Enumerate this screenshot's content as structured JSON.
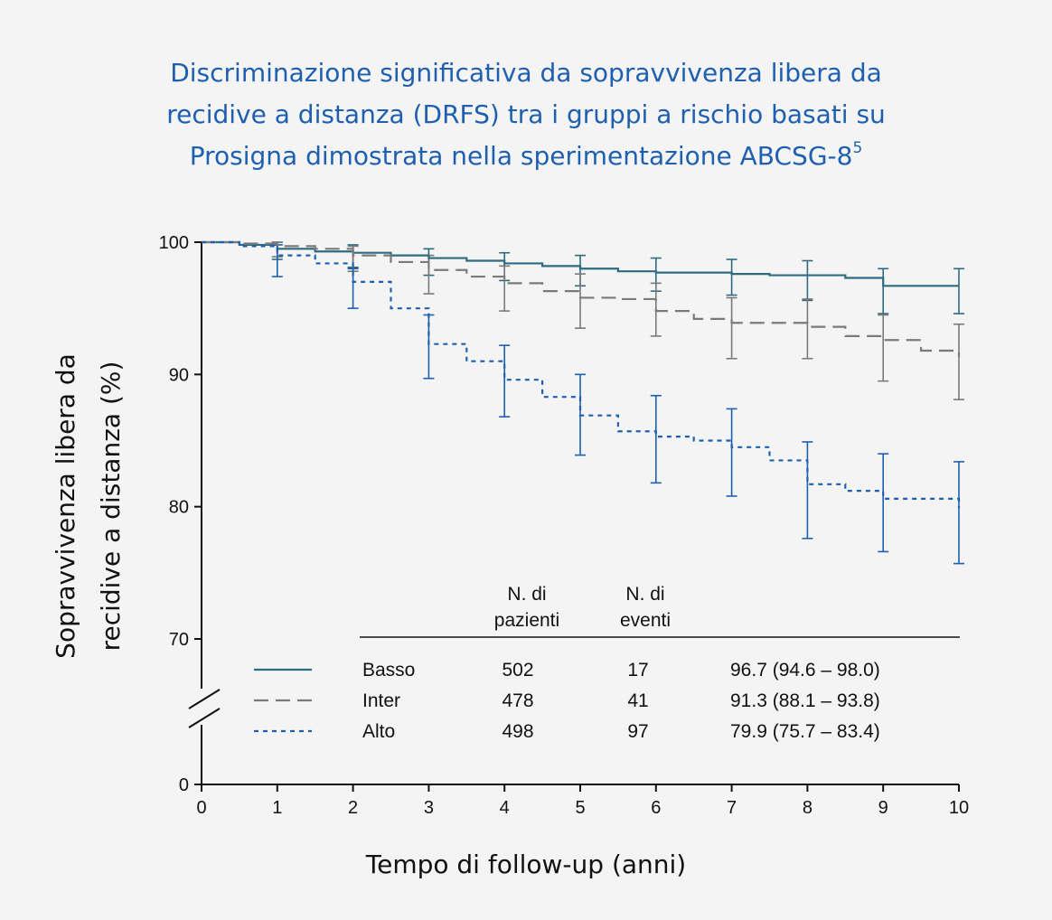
{
  "title_lines": [
    "Discriminazione significativa da sopravvivenza libera da",
    "recidive a distanza (DRFS) tra i gruppi a rischio basati su",
    "Prosigna dimostrata nella sperimentazione ABCSG-8"
  ],
  "title_sup": "5",
  "chart_data": {
    "type": "line",
    "subtype": "kaplan-meier step curve",
    "ylabel_lines": [
      "Sopravvivenza libera da",
      "recidive a distanza (%)"
    ],
    "xlabel": "Tempo di follow-up (anni)",
    "xlim": [
      0,
      10
    ],
    "ylim": [
      0,
      100
    ],
    "y_axis_break": "between 0 and 70",
    "x_ticks": [
      0,
      1,
      2,
      3,
      4,
      5,
      6,
      7,
      8,
      9,
      10
    ],
    "y_ticks": [
      0,
      70,
      80,
      90,
      100
    ],
    "grid": false,
    "colors": {
      "Basso": "#2e6b80",
      "Inter": "#7a7a7a",
      "Alto": "#1d5fb0"
    },
    "series": [
      {
        "name": "Basso",
        "style": "solid",
        "points": [
          [
            0,
            100
          ],
          [
            0.5,
            99.8
          ],
          [
            1,
            99.5
          ],
          [
            1.5,
            99.3
          ],
          [
            2,
            99.2
          ],
          [
            2.5,
            99.0
          ],
          [
            3,
            98.8
          ],
          [
            3.5,
            98.6
          ],
          [
            4,
            98.4
          ],
          [
            4.5,
            98.2
          ],
          [
            5,
            98.0
          ],
          [
            5.5,
            97.8
          ],
          [
            6,
            97.7
          ],
          [
            7,
            97.6
          ],
          [
            7.5,
            97.5
          ],
          [
            8,
            97.5
          ],
          [
            8.5,
            97.3
          ],
          [
            9,
            96.7
          ],
          [
            10,
            96.7
          ]
        ],
        "error_bars": [
          [
            1,
            99.5,
            98.7,
            100
          ],
          [
            2,
            99.2,
            98.1,
            99.8
          ],
          [
            3,
            98.8,
            97.5,
            99.5
          ],
          [
            4,
            98.4,
            97.1,
            99.2
          ],
          [
            5,
            98.0,
            96.7,
            99.0
          ],
          [
            6,
            97.7,
            96.3,
            98.8
          ],
          [
            7,
            97.6,
            96.0,
            98.7
          ],
          [
            8,
            97.5,
            95.6,
            98.6
          ],
          [
            9,
            96.7,
            94.6,
            98.0
          ],
          [
            10,
            96.7,
            94.6,
            98.0
          ]
        ]
      },
      {
        "name": "Inter",
        "style": "long-dash",
        "points": [
          [
            0,
            100
          ],
          [
            0.5,
            99.9
          ],
          [
            1,
            99.7
          ],
          [
            1.5,
            99.5
          ],
          [
            2,
            99.0
          ],
          [
            2.5,
            98.5
          ],
          [
            3,
            97.9
          ],
          [
            3.5,
            97.4
          ],
          [
            4,
            96.9
          ],
          [
            4.5,
            96.3
          ],
          [
            5,
            95.8
          ],
          [
            5.5,
            95.7
          ],
          [
            6,
            94.8
          ],
          [
            6.5,
            94.2
          ],
          [
            7,
            93.9
          ],
          [
            7.5,
            93.9
          ],
          [
            8,
            93.6
          ],
          [
            8.5,
            92.9
          ],
          [
            9,
            92.6
          ],
          [
            9.5,
            91.8
          ],
          [
            10,
            91.3
          ]
        ],
        "error_bars": [
          [
            1,
            99.7,
            98.9,
            100
          ],
          [
            2,
            99.0,
            97.8,
            99.7
          ],
          [
            3,
            97.9,
            96.1,
            99.0
          ],
          [
            4,
            96.9,
            94.8,
            98.2
          ],
          [
            5,
            95.8,
            93.5,
            97.6
          ],
          [
            6,
            94.8,
            92.9,
            96.9
          ],
          [
            7,
            93.9,
            91.2,
            95.8
          ],
          [
            8,
            93.6,
            91.2,
            95.7
          ],
          [
            9,
            92.6,
            89.5,
            94.5
          ],
          [
            10,
            91.3,
            88.1,
            93.8
          ]
        ]
      },
      {
        "name": "Alto",
        "style": "short-dash",
        "points": [
          [
            0,
            100
          ],
          [
            0.5,
            99.7
          ],
          [
            1,
            99.0
          ],
          [
            1.5,
            98.4
          ],
          [
            2,
            97.0
          ],
          [
            2.5,
            95.0
          ],
          [
            3,
            92.3
          ],
          [
            3.5,
            91.0
          ],
          [
            4,
            89.6
          ],
          [
            4.5,
            88.3
          ],
          [
            5,
            86.9
          ],
          [
            5.5,
            85.7
          ],
          [
            6,
            85.3
          ],
          [
            6.5,
            85.0
          ],
          [
            7,
            84.5
          ],
          [
            7.5,
            83.5
          ],
          [
            8,
            81.7
          ],
          [
            8.5,
            81.2
          ],
          [
            9,
            80.6
          ],
          [
            9.5,
            80.6
          ],
          [
            10,
            79.9
          ]
        ],
        "error_bars": [
          [
            1,
            99.0,
            97.4,
            99.8
          ],
          [
            2,
            97.0,
            95.0,
            98.0
          ],
          [
            3,
            92.3,
            89.7,
            94.5
          ],
          [
            4,
            89.6,
            86.8,
            92.2
          ],
          [
            5,
            87.0,
            83.9,
            90.0
          ],
          [
            6,
            85.3,
            81.8,
            88.4
          ],
          [
            7,
            84.2,
            80.8,
            87.4
          ],
          [
            8,
            81.6,
            77.6,
            84.9
          ],
          [
            9,
            80.5,
            76.6,
            84.0
          ],
          [
            10,
            79.9,
            75.7,
            83.4
          ]
        ]
      }
    ],
    "table": {
      "headers": [
        "N. di pazienti",
        "N. di eventi"
      ],
      "rows": [
        {
          "label": "Basso",
          "patients": "502",
          "events": "17",
          "estimate": "96.7 (94.6 – 98.0)"
        },
        {
          "label": "Inter",
          "patients": "478",
          "events": "41",
          "estimate": "91.3 (88.1 – 93.8)"
        },
        {
          "label": "Alto",
          "patients": "498",
          "events": "97",
          "estimate": "79.9 (75.7 – 83.4)"
        }
      ]
    }
  }
}
